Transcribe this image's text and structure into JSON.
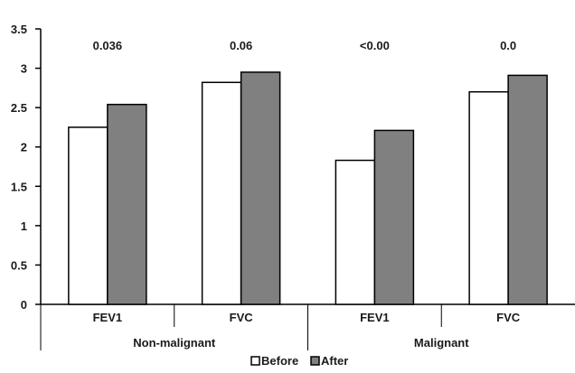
{
  "chart_data": {
    "type": "bar",
    "categories": [
      "FEV1",
      "FVC",
      "FEV1",
      "FVC"
    ],
    "groups": [
      {
        "label": "Non-malignant",
        "categories": [
          "FEV1",
          "FVC"
        ]
      },
      {
        "label": "Malignant",
        "categories": [
          "FEV1",
          "FVC"
        ]
      }
    ],
    "series": [
      {
        "name": "Before",
        "values": [
          2.25,
          2.82,
          1.83,
          2.7
        ],
        "color": "#ffffff"
      },
      {
        "name": "After",
        "values": [
          2.54,
          2.95,
          2.21,
          2.91
        ],
        "color": "#808080"
      }
    ],
    "annotations": [
      "0.036",
      "0.06",
      "<0.00",
      "0.0"
    ],
    "ylim": [
      0,
      3.5
    ],
    "yticks": [
      "0",
      "0.5",
      "1",
      "1.5",
      "2",
      "2.5",
      "3",
      "3.5"
    ],
    "grid": false,
    "legend_position": "bottom"
  }
}
